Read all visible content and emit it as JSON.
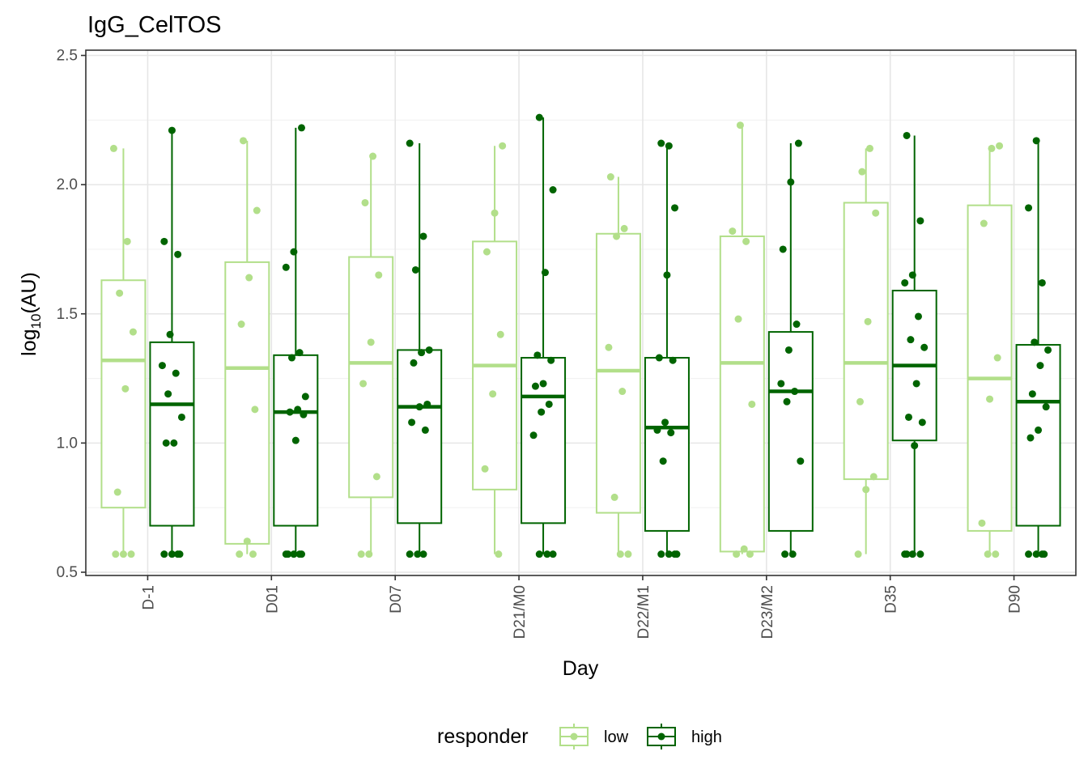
{
  "chart_data": {
    "type": "box",
    "title": "IgG_CelTOS",
    "xlabel": "Day",
    "ylabel": {
      "base": "log",
      "subscript": "10",
      "rest": "(AU)"
    },
    "ylim": [
      0.5,
      2.5
    ],
    "yticks": [
      "0.5",
      "1.0",
      "1.5",
      "2.0",
      "2.5"
    ],
    "categories": [
      "D-1",
      "D01",
      "D07",
      "D21/M0",
      "D22/M1",
      "D23/M2",
      "D35",
      "D90"
    ],
    "grid": true,
    "legend": {
      "title": "responder",
      "position": "bottom"
    },
    "series": [
      {
        "name": "low",
        "color": "#b2df8a",
        "boxes": [
          {
            "q1": 0.75,
            "median": 1.32,
            "q3": 1.63,
            "lower": 0.57,
            "upper": 2.14
          },
          {
            "q1": 0.61,
            "median": 1.29,
            "q3": 1.7,
            "lower": 0.57,
            "upper": 2.17
          },
          {
            "q1": 0.79,
            "median": 1.31,
            "q3": 1.72,
            "lower": 0.57,
            "upper": 2.11
          },
          {
            "q1": 0.82,
            "median": 1.3,
            "q3": 1.78,
            "lower": 0.57,
            "upper": 2.15
          },
          {
            "q1": 0.73,
            "median": 1.28,
            "q3": 1.81,
            "lower": 0.57,
            "upper": 2.03
          },
          {
            "q1": 0.58,
            "median": 1.31,
            "q3": 1.8,
            "lower": 0.57,
            "upper": 2.23
          },
          {
            "q1": 0.86,
            "median": 1.31,
            "q3": 1.93,
            "lower": 0.57,
            "upper": 2.14
          },
          {
            "q1": 0.66,
            "median": 1.25,
            "q3": 1.92,
            "lower": 0.57,
            "upper": 2.15
          }
        ],
        "points": [
          [
            2.14,
            1.78,
            1.58,
            1.43,
            1.21,
            0.81,
            0.57,
            0.57,
            0.57
          ],
          [
            2.17,
            1.9,
            1.64,
            1.46,
            1.13,
            0.62,
            0.57,
            0.57
          ],
          [
            2.11,
            1.93,
            1.65,
            1.39,
            1.23,
            0.87,
            0.57,
            0.57
          ],
          [
            2.15,
            1.89,
            1.74,
            1.42,
            1.19,
            0.9,
            0.57
          ],
          [
            2.03,
            1.83,
            1.8,
            1.37,
            1.2,
            0.79,
            0.57,
            0.57
          ],
          [
            2.23,
            1.82,
            1.78,
            1.48,
            1.15,
            0.59,
            0.57,
            0.57
          ],
          [
            2.14,
            2.05,
            1.89,
            1.47,
            1.16,
            0.87,
            0.82,
            0.57
          ],
          [
            2.15,
            2.14,
            1.85,
            1.33,
            1.17,
            0.69,
            0.57,
            0.57
          ]
        ]
      },
      {
        "name": "high",
        "color": "#006400",
        "boxes": [
          {
            "q1": 0.68,
            "median": 1.15,
            "q3": 1.39,
            "lower": 0.57,
            "upper": 2.21
          },
          {
            "q1": 0.68,
            "median": 1.12,
            "q3": 1.34,
            "lower": 0.57,
            "upper": 2.22
          },
          {
            "q1": 0.69,
            "median": 1.14,
            "q3": 1.36,
            "lower": 0.57,
            "upper": 2.16
          },
          {
            "q1": 0.69,
            "median": 1.18,
            "q3": 1.33,
            "lower": 0.57,
            "upper": 2.26
          },
          {
            "q1": 0.66,
            "median": 1.06,
            "q3": 1.33,
            "lower": 0.57,
            "upper": 2.16
          },
          {
            "q1": 0.66,
            "median": 1.2,
            "q3": 1.43,
            "lower": 0.57,
            "upper": 2.16
          },
          {
            "q1": 1.01,
            "median": 1.3,
            "q3": 1.59,
            "lower": 0.57,
            "upper": 2.19
          },
          {
            "q1": 0.68,
            "median": 1.16,
            "q3": 1.38,
            "lower": 0.57,
            "upper": 2.17
          }
        ],
        "points": [
          [
            2.21,
            1.78,
            1.73,
            1.42,
            1.3,
            1.27,
            1.19,
            1.1,
            1.0,
            1.0,
            0.57,
            0.57,
            0.57,
            0.57
          ],
          [
            2.22,
            1.74,
            1.68,
            1.35,
            1.33,
            1.18,
            1.13,
            1.12,
            1.11,
            1.01,
            0.57,
            0.57,
            0.57,
            0.57,
            0.57
          ],
          [
            2.16,
            1.8,
            1.67,
            1.36,
            1.35,
            1.31,
            1.15,
            1.14,
            1.08,
            1.05,
            0.57,
            0.57,
            0.57
          ],
          [
            2.26,
            1.98,
            1.66,
            1.34,
            1.32,
            1.23,
            1.22,
            1.15,
            1.12,
            1.03,
            0.57,
            0.57,
            0.57
          ],
          [
            2.15,
            2.16,
            1.91,
            1.65,
            1.33,
            1.32,
            1.08,
            1.05,
            1.04,
            0.93,
            0.57,
            0.57,
            0.57,
            0.57
          ],
          [
            2.16,
            2.01,
            1.75,
            1.46,
            1.36,
            1.23,
            1.2,
            1.16,
            0.93,
            0.57,
            0.57
          ],
          [
            2.19,
            1.86,
            1.65,
            1.62,
            1.49,
            1.4,
            1.37,
            1.23,
            1.1,
            1.08,
            0.99,
            0.57,
            0.57,
            0.57,
            0.57
          ],
          [
            2.17,
            1.91,
            1.62,
            1.39,
            1.36,
            1.3,
            1.19,
            1.14,
            1.05,
            1.02,
            0.57,
            0.57,
            0.57,
            0.57
          ]
        ]
      }
    ]
  }
}
